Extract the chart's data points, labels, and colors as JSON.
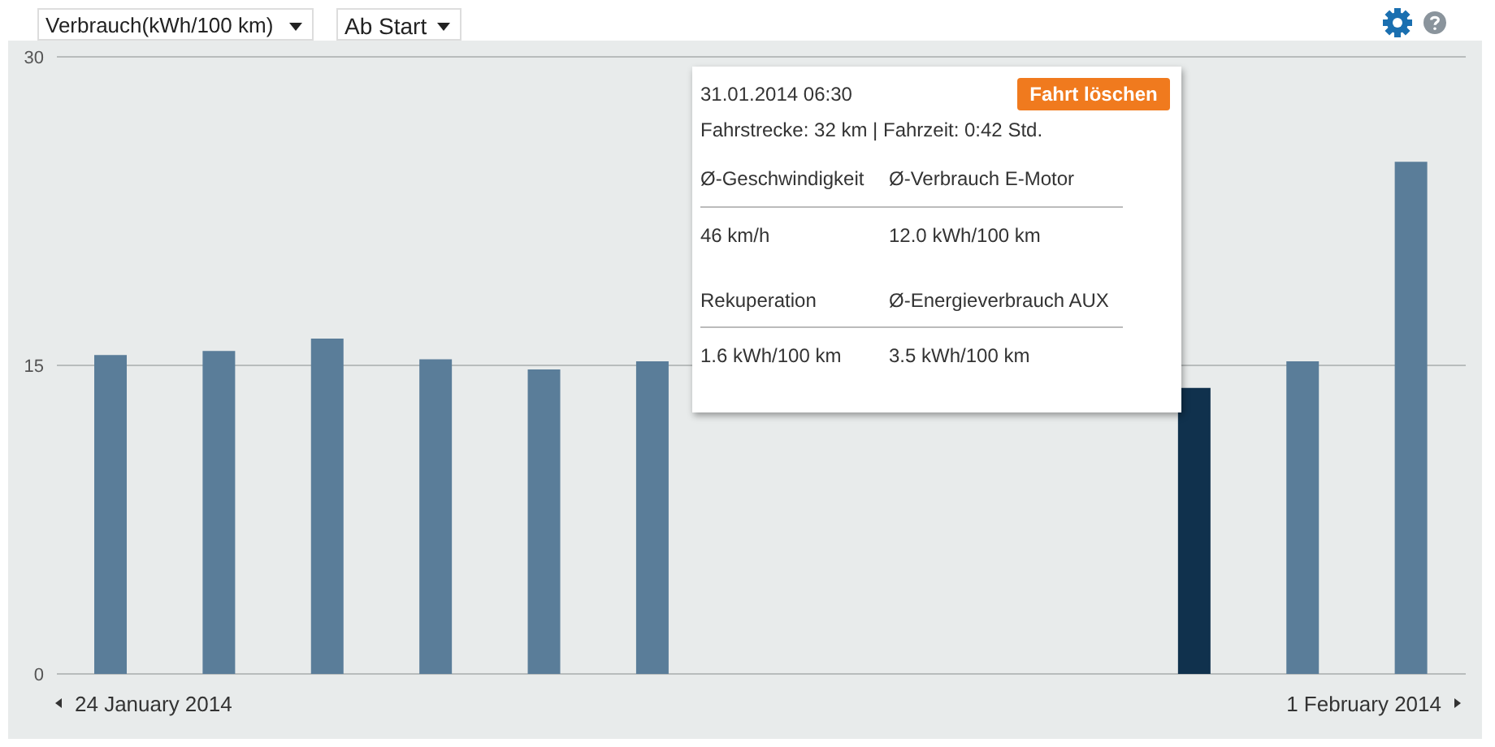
{
  "chart_data": {
    "type": "bar",
    "categories": [
      null,
      null,
      null,
      null,
      null,
      null,
      null,
      null,
      null,
      null,
      null,
      null,
      null
    ],
    "values": [
      15.5,
      15.7,
      16.3,
      15.3,
      14.8,
      15.2,
      null,
      null,
      null,
      null,
      13.9,
      15.2,
      24.9
    ],
    "colors": [
      "#5a7d99",
      "#5a7d99",
      "#5a7d99",
      "#5a7d99",
      "#5a7d99",
      "#5a7d99",
      "#5a7d99",
      "#5a7d99",
      "#5a7d99",
      "#5a7d99",
      "#10314d",
      "#5a7d99",
      "#5a7d99"
    ],
    "ylim": [
      0,
      30
    ],
    "yticks": [
      0,
      15,
      30
    ],
    "grid": "y",
    "tick_labels": "y",
    "annotations": [
      "Verbrauch(kWh/100 km)",
      "Ab Start",
      "24 January 2014",
      "1 February 2014",
      "31.01.2014 06:30",
      "Fahrt löschen",
      "Fahrstrecke: 32 km | Fahrzeit: 0:42 Std.",
      "Ø-Geschwindigkeit",
      "Ø-Verbrauch E-Motor",
      "46 km/h",
      "12.0 kWh/100 km",
      "Rekuperation",
      "Ø-Energieverbrauch AUX",
      "1.6 kWh/100 km",
      "3.5 kWh/100 km"
    ]
  }
}
